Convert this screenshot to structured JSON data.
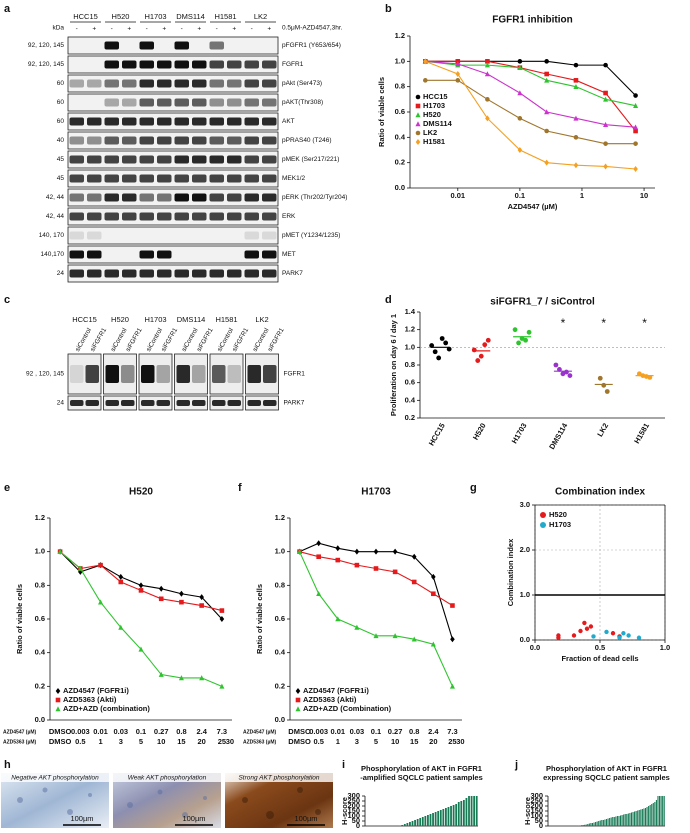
{
  "figure": {
    "panel_labels": [
      "a",
      "b",
      "c",
      "d",
      "e",
      "f",
      "g",
      "h",
      "i",
      "j"
    ],
    "blot_a": {
      "cell_lines": [
        "HCC15",
        "H520",
        "H1703",
        "DMS114",
        "H1581",
        "LK2"
      ],
      "treatment_signs": [
        "-",
        "+"
      ],
      "kda_header": "kDa",
      "treatment": "0.5μM-AZD4547,3hr.",
      "rows": [
        {
          "label": "pFGFR1 (Y653/654)",
          "kda": "92, 120, 145"
        },
        {
          "label": "FGFR1",
          "kda": "92, 120, 145"
        },
        {
          "label": "pAkt (Ser473)",
          "kda": "60"
        },
        {
          "label": "pAKT(Thr308)",
          "kda": "60"
        },
        {
          "label": "AKT",
          "kda": "60"
        },
        {
          "label": "pPRAS40 (T246)",
          "kda": "40"
        },
        {
          "label": "pMEK (Ser217/221)",
          "kda": "45"
        },
        {
          "label": "MEK1/2",
          "kda": "45"
        },
        {
          "label": "pERK (Thr202/Tyr204)",
          "kda": "42, 44"
        },
        {
          "label": "ERK",
          "kda": "42, 44"
        },
        {
          "label": "pMET (Y1234/1235)",
          "kda": "140, 170"
        },
        {
          "label": "MET",
          "kda": "140,170"
        },
        {
          "label": "PARK7",
          "kda": "24"
        }
      ]
    },
    "blot_c": {
      "cell_lines": [
        "HCC15",
        "H520",
        "H1703",
        "DMS114",
        "H1581",
        "LK2"
      ],
      "lanes": [
        "siControl",
        "siFGFR1"
      ],
      "rows": [
        {
          "label": "FGFR1",
          "kda": "92 , 120, 145"
        },
        {
          "label": "PARK7",
          "kda": "24"
        }
      ]
    },
    "ihc_h": {
      "images": [
        {
          "label": "Negative AKT phosphorylation",
          "scale": "100µm"
        },
        {
          "label": "Weak AKT phosphorylation",
          "scale": "100µm"
        },
        {
          "label": "Strong AKT phosphorylation",
          "scale": "100µm"
        }
      ]
    }
  },
  "chart_data": [
    {
      "type": "line",
      "title": "FGFR1 inhibition",
      "ylabel": "Ratio of viable cells",
      "xlabel": "AZD4547 (µM)",
      "x": [
        0.003,
        0.01,
        0.03,
        0.1,
        0.27,
        0.8,
        2.4,
        7.3
      ],
      "log_x": true,
      "xlim": [
        0.0017,
        15
      ],
      "xticks": [
        0.01,
        0.1,
        1,
        10
      ],
      "ylim": [
        0,
        1.2
      ],
      "yticks": [
        {
          "value": 0,
          "label": "0.0"
        },
        0.2,
        0.4,
        0.6,
        0.8,
        {
          "value": 1,
          "label": "1.0"
        },
        1.2
      ],
      "legend": "center-left",
      "series": [
        {
          "name": "HCC15",
          "color": "#000000",
          "marker": "circle",
          "values": [
            1.0,
            1.0,
            1.0,
            1.0,
            1.0,
            0.97,
            0.97,
            0.73
          ]
        },
        {
          "name": "H1703",
          "color": "#e41a1c",
          "marker": "square",
          "values": [
            1.0,
            1.0,
            1.0,
            0.95,
            0.9,
            0.85,
            0.75,
            0.45
          ]
        },
        {
          "name": "H520",
          "color": "#2fc42f",
          "marker": "triangle",
          "values": [
            1.0,
            0.97,
            0.97,
            0.95,
            0.85,
            0.8,
            0.7,
            0.65
          ]
        },
        {
          "name": "DMS114",
          "color": "#cc33cc",
          "marker": "triangle",
          "values": [
            1.0,
            0.98,
            0.9,
            0.75,
            0.6,
            0.55,
            0.5,
            0.48
          ]
        },
        {
          "name": "LK2",
          "color": "#a0762d",
          "marker": "circle",
          "values": [
            0.85,
            0.85,
            0.7,
            0.55,
            0.45,
            0.4,
            0.35,
            0.35
          ]
        },
        {
          "name": "H1581",
          "color": "#f5a020",
          "marker": "diamond",
          "values": [
            1.0,
            0.9,
            0.55,
            0.3,
            0.2,
            0.18,
            0.17,
            0.15
          ]
        }
      ]
    },
    {
      "type": "dot",
      "title": "siFGFR1_7 / siControl",
      "ylabel": "Proliferation on day 6 / day 1",
      "categories": [
        "HCC15",
        "H520",
        "H1703",
        "DMS114",
        "LK2",
        "H1581"
      ],
      "colors": [
        "#000000",
        "#e41a1c",
        "#2fc42f",
        "#9933cc",
        "#a0762d",
        "#f5a020"
      ],
      "values": [
        1.0,
        0.96,
        1.12,
        0.73,
        0.58,
        0.68
      ],
      "points": [
        [
          1.02,
          0.95,
          0.88,
          1.1,
          1.05,
          0.98
        ],
        [
          0.97,
          0.85,
          0.9,
          1.03,
          1.08
        ],
        [
          1.2,
          1.05,
          1.1,
          1.08,
          1.17
        ],
        [
          0.8,
          0.75,
          0.7,
          0.72,
          0.68
        ],
        [
          0.65,
          0.57,
          0.5
        ],
        [
          0.7,
          0.68,
          0.67,
          0.66
        ]
      ],
      "reference_line": 1,
      "annotations": [
        {
          "category": "DMS114",
          "text": "*"
        },
        {
          "category": "LK2",
          "text": "*"
        },
        {
          "category": "H1581",
          "text": "*"
        }
      ],
      "ylim": [
        0.2,
        1.4
      ],
      "yticks": [
        0.2,
        0.4,
        0.6,
        0.8,
        {
          "value": 1,
          "label": "1.0"
        },
        1.2,
        1.4
      ]
    },
    {
      "type": "line",
      "title": "H520",
      "ylabel": "Ratio of viable cells",
      "categories": [
        "DMSO",
        "0.003",
        "0.01",
        "0.03",
        "0.1",
        "0.27",
        "0.8",
        "2.4",
        "7.3"
      ],
      "categories2": [
        "DMSO",
        "0.5",
        "1",
        "3",
        "5",
        "10",
        "15",
        "20",
        "25",
        "30"
      ],
      "category_row_labels": [
        "AZD4547 (µM)",
        "AZD5363 (µM)"
      ],
      "ylim": [
        0,
        1.2
      ],
      "yticks": [
        {
          "value": 0,
          "label": "0.0"
        },
        0.2,
        0.4,
        0.6,
        0.8,
        {
          "value": 1,
          "label": "1.0"
        },
        1.2
      ],
      "legend": "lower-left",
      "series": [
        {
          "name": "AZD4547 (FGFR1i)",
          "color": "#000000",
          "marker": "diamond",
          "values": [
            1.0,
            0.88,
            0.92,
            0.85,
            0.8,
            0.78,
            0.75,
            0.73,
            0.6
          ]
        },
        {
          "name": "AZD5363 (Akti)",
          "color": "#e41a1c",
          "marker": "square",
          "values": [
            1.0,
            0.9,
            0.92,
            0.82,
            0.77,
            0.72,
            0.7,
            0.68,
            0.65
          ]
        },
        {
          "name": "AZD+AZD (combination)",
          "color": "#2fc42f",
          "marker": "triangle",
          "values": [
            1.0,
            0.9,
            0.7,
            0.55,
            0.42,
            0.27,
            0.25,
            0.25,
            0.2
          ]
        }
      ]
    },
    {
      "type": "line",
      "title": "H1703",
      "ylabel": "Ratio of viable cells",
      "categories": [
        "DMSO",
        "0.003",
        "0.01",
        "0.03",
        "0.1",
        "0.27",
        "0.8",
        "2.4",
        "7.3"
      ],
      "categories2": [
        "DMSO",
        "0.5",
        "1",
        "3",
        "5",
        "10",
        "15",
        "20",
        "25",
        "30"
      ],
      "category_row_labels": [
        "AZD4547 (µM)",
        "AZD5363 (µM)"
      ],
      "ylim": [
        0,
        1.2
      ],
      "yticks": [
        {
          "value": 0,
          "label": "0.0"
        },
        0.2,
        0.4,
        0.6,
        0.8,
        {
          "value": 1,
          "label": "1.0"
        },
        1.2
      ],
      "legend": "lower-left",
      "series": [
        {
          "name": "AZD4547 (FGFR1i)",
          "color": "#000000",
          "marker": "diamond",
          "values": [
            1.0,
            1.05,
            1.02,
            1.0,
            1.0,
            1.0,
            0.97,
            0.85,
            0.48
          ]
        },
        {
          "name": "AZD5363 (Akti)",
          "color": "#e41a1c",
          "marker": "square",
          "values": [
            1.0,
            0.97,
            0.95,
            0.92,
            0.9,
            0.88,
            0.82,
            0.75,
            0.68
          ]
        },
        {
          "name": "AZD+AZD (Combination)",
          "color": "#2fc42f",
          "marker": "triangle",
          "values": [
            1.0,
            0.75,
            0.6,
            0.55,
            0.5,
            0.5,
            0.48,
            0.45,
            0.2
          ]
        }
      ]
    },
    {
      "type": "scatter",
      "title": "Combination index",
      "xlabel": "Fraction of dead cells",
      "ylabel": "Combination index",
      "xlim": [
        0,
        1
      ],
      "xticks": [
        {
          "value": 0,
          "label": "0.0"
        },
        0.5,
        {
          "value": 1,
          "label": "1.0"
        }
      ],
      "ylim": [
        0,
        3
      ],
      "yticks": [
        {
          "value": 0,
          "label": "0.0"
        },
        {
          "value": 1,
          "label": "1.0"
        },
        {
          "value": 2,
          "label": "2.0"
        },
        {
          "value": 3,
          "label": "3.0"
        }
      ],
      "grid": true,
      "reference_line": 1,
      "legend": "upper-left",
      "series": [
        {
          "name": "H520",
          "color": "#e41a1c",
          "x": [
            0.18,
            0.18,
            0.3,
            0.35,
            0.38,
            0.4,
            0.43,
            0.6,
            0.65
          ],
          "values": [
            0.05,
            0.1,
            0.1,
            0.2,
            0.38,
            0.25,
            0.3,
            0.15,
            0.08
          ]
        },
        {
          "name": "H1703",
          "color": "#22aacc",
          "x": [
            0.45,
            0.55,
            0.65,
            0.68,
            0.72,
            0.8
          ],
          "values": [
            0.08,
            0.18,
            0.05,
            0.15,
            0.1,
            0.05
          ]
        }
      ]
    },
    {
      "type": "bar",
      "title": [
        "Phosphorylation of AKT in FGFR1",
        "-amplified SQCLC patient samples"
      ],
      "ylabel": "H-score",
      "color": "#167a55",
      "ylim": [
        0,
        300
      ],
      "yticks": [
        0,
        50,
        100,
        150,
        200,
        250,
        300
      ],
      "values": [
        0,
        0,
        0,
        0,
        0,
        0,
        0,
        0,
        0,
        0,
        0,
        0,
        0,
        5,
        10,
        20,
        30,
        40,
        50,
        60,
        70,
        80,
        90,
        100,
        110,
        120,
        130,
        140,
        150,
        160,
        170,
        180,
        190,
        200,
        210,
        220,
        240,
        250,
        260,
        280,
        300,
        300,
        300,
        300
      ]
    },
    {
      "type": "bar",
      "title": [
        "Phosphorylation of AKT in FGFR1",
        "expressing SQCLC patient samples"
      ],
      "ylabel": "H-score",
      "color": "#167a55",
      "ylim": [
        0,
        300
      ],
      "yticks": [
        0,
        50,
        100,
        150,
        200,
        250,
        300
      ],
      "values": [
        0,
        0,
        0,
        0,
        0,
        0,
        0,
        0,
        0,
        0,
        0,
        0,
        0,
        0,
        0,
        0,
        0,
        0,
        2,
        5,
        5,
        8,
        10,
        12,
        15,
        20,
        25,
        30,
        30,
        35,
        40,
        45,
        50,
        55,
        60,
        60,
        65,
        70,
        75,
        80,
        85,
        90,
        90,
        95,
        100,
        100,
        105,
        110,
        115,
        120,
        120,
        125,
        130,
        135,
        140,
        145,
        150,
        155,
        160,
        165,
        170,
        175,
        180,
        190,
        200,
        210,
        220,
        230,
        240,
        260,
        300,
        300,
        300,
        300,
        300
      ]
    }
  ]
}
